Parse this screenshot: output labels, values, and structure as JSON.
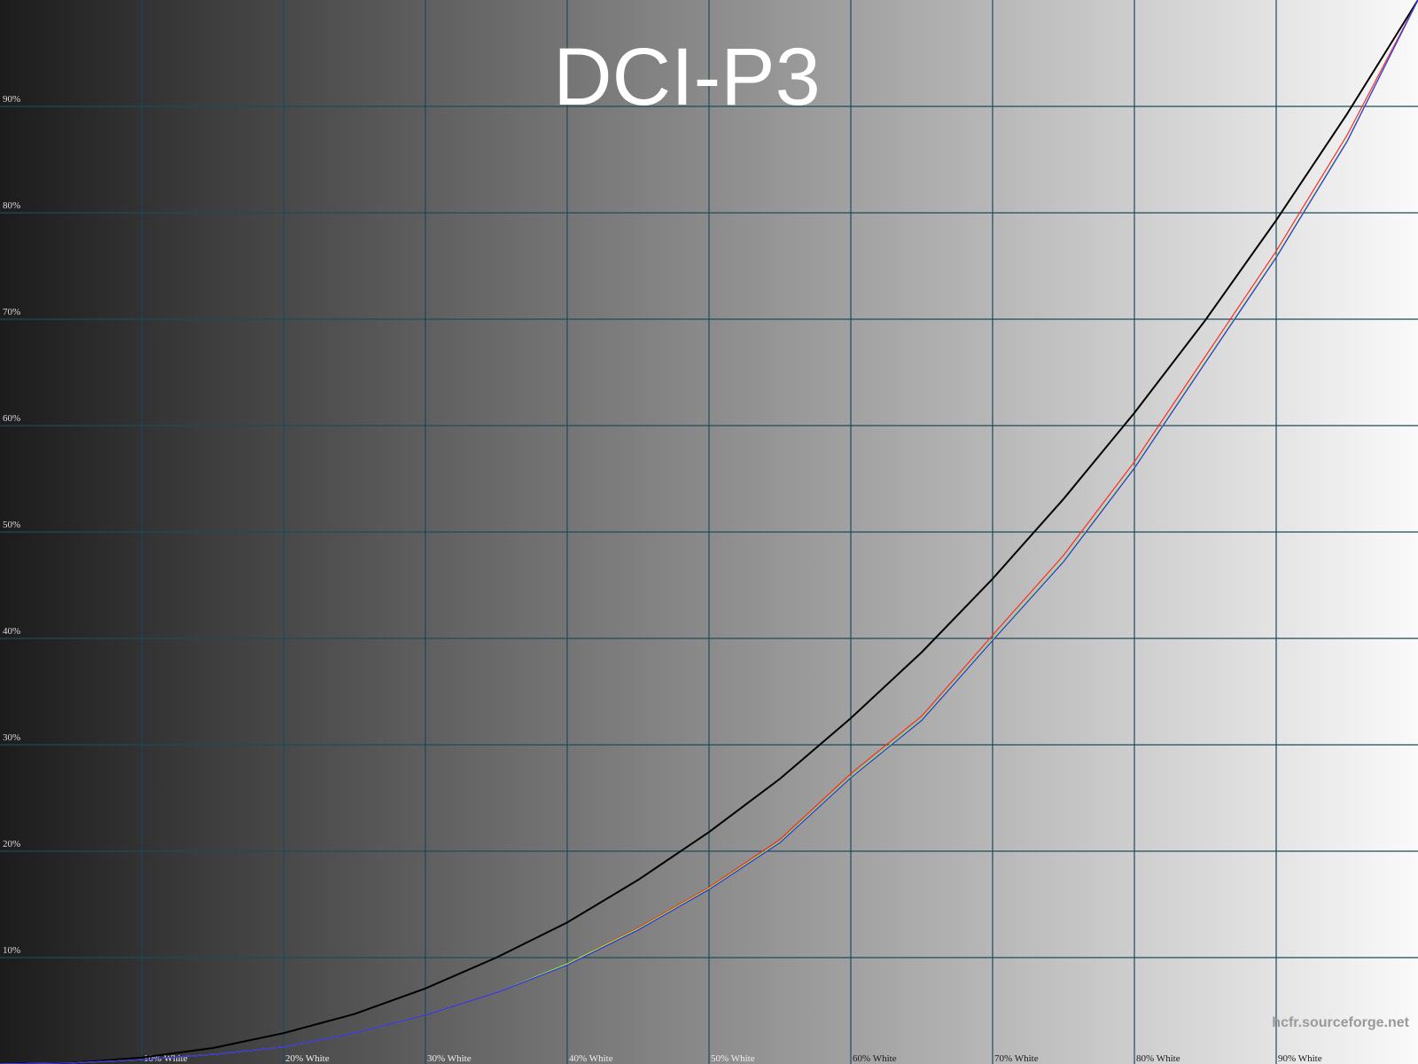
{
  "chart_data": {
    "type": "line",
    "title": "DCI-P3",
    "watermark": "hcfr.sourceforge.net",
    "x": [
      0,
      5,
      10,
      15,
      20,
      25,
      30,
      35,
      40,
      45,
      50,
      55,
      60,
      65,
      70,
      75,
      80,
      85,
      90,
      95,
      100
    ],
    "series": [
      {
        "color": "#000000",
        "values": [
          0,
          0.1,
          0.6,
          1.5,
          2.9,
          4.7,
          7.1,
          10.0,
          13.3,
          17.3,
          21.8,
          26.8,
          32.5,
          38.7,
          45.6,
          53.1,
          61.2,
          69.9,
          79.3,
          89.3,
          100
        ]
      },
      {
        "color": "#ff2a2a",
        "values": [
          0,
          0.1,
          0.4,
          0.9,
          1.6,
          2.9,
          4.6,
          6.7,
          9.4,
          12.8,
          16.6,
          21.1,
          27.3,
          32.7,
          40.3,
          47.8,
          56.6,
          66.5,
          76.4,
          87.3,
          100
        ]
      },
      {
        "color": "#8cff1a",
        "values": [
          0,
          0.1,
          0.4,
          0.9,
          1.6,
          2.9,
          4.6,
          6.7,
          9.4,
          12.7,
          16.5,
          20.9,
          27.0,
          32.4,
          39.9,
          47.3,
          56.1,
          66.0,
          75.9,
          86.8,
          100
        ]
      },
      {
        "color": "#2a2aff",
        "values": [
          0,
          0.1,
          0.4,
          0.9,
          1.6,
          2.9,
          4.6,
          6.7,
          9.3,
          12.6,
          16.4,
          20.8,
          26.9,
          32.3,
          39.8,
          47.2,
          56.0,
          65.9,
          75.8,
          86.7,
          100
        ]
      }
    ],
    "xlim": [
      0,
      100
    ],
    "ylim": [
      0,
      100
    ],
    "xticks": [
      {
        "value": 10,
        "label": "10% White"
      },
      {
        "value": 20,
        "label": "20% White"
      },
      {
        "value": 30,
        "label": "30% White"
      },
      {
        "value": 40,
        "label": "40% White"
      },
      {
        "value": 50,
        "label": "50% White"
      },
      {
        "value": 60,
        "label": "60% White"
      },
      {
        "value": 70,
        "label": "70% White"
      },
      {
        "value": 80,
        "label": "80% White"
      },
      {
        "value": 90,
        "label": "90% White"
      }
    ],
    "yticks": [
      {
        "value": 10,
        "label": "10%"
      },
      {
        "value": 20,
        "label": "20%"
      },
      {
        "value": 30,
        "label": "30%"
      },
      {
        "value": 40,
        "label": "40%"
      },
      {
        "value": 50,
        "label": "50%"
      },
      {
        "value": 60,
        "label": "60%"
      },
      {
        "value": 70,
        "label": "70%"
      },
      {
        "value": 80,
        "label": "80%"
      },
      {
        "value": 90,
        "label": "90%"
      }
    ],
    "grid": true
  }
}
